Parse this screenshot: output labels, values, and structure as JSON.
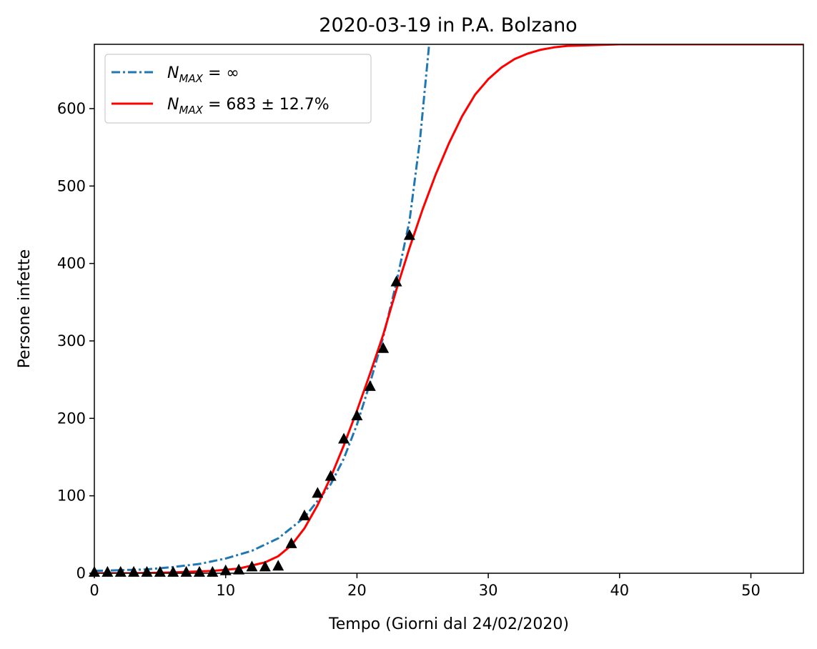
{
  "chart_data": {
    "type": "line",
    "title": "2020-03-19 in P.A. Bolzano",
    "xlabel": "Tempo (Giorni dal 24/02/2020)",
    "ylabel": "Persone infette",
    "xlim": [
      0,
      54
    ],
    "ylim": [
      0,
      683
    ],
    "x_ticks": [
      0,
      10,
      20,
      30,
      40,
      50
    ],
    "y_ticks": [
      0,
      100,
      200,
      300,
      400,
      500,
      600
    ],
    "grid": false,
    "legend_position": "top-left",
    "legend": [
      {
        "symbol": "N",
        "subscript": "MAX",
        "rest": " = ∞",
        "style": "dash-dot",
        "color": "#1f77b4"
      },
      {
        "symbol": "N",
        "subscript": "MAX",
        "rest": " = 683 ± 12.7%",
        "style": "solid",
        "color": "#ff0000"
      }
    ],
    "series": [
      {
        "kind": "exponential-fit",
        "color": "#1f77b4",
        "line_style": "dash-dot",
        "x": [
          0,
          2,
          4,
          6,
          8,
          10,
          12,
          14,
          16,
          18,
          19,
          20,
          21,
          22,
          23,
          24,
          24.8,
          25.5
        ],
        "y": [
          3,
          4,
          5,
          8,
          12,
          19,
          29,
          45,
          72,
          115,
          148,
          192,
          246,
          305,
          375,
          455,
          560,
          683
        ]
      },
      {
        "kind": "logistic-fit",
        "color": "#ff0000",
        "line_style": "solid",
        "x": [
          0,
          3,
          6,
          9,
          11,
          13,
          14,
          15,
          16,
          17,
          18,
          19,
          20,
          21,
          22,
          23,
          24,
          25,
          26,
          27,
          28,
          29,
          30,
          31,
          32,
          33,
          34,
          35,
          36,
          38,
          40,
          43,
          46,
          50,
          54
        ],
        "y": [
          0,
          0,
          1,
          3,
          6,
          14,
          22,
          36,
          58,
          88,
          124,
          165,
          210,
          258,
          308,
          366,
          420,
          470,
          515,
          555,
          590,
          618,
          638,
          653,
          664,
          671,
          676,
          679,
          681,
          682,
          683,
          683,
          683,
          683,
          683
        ]
      },
      {
        "kind": "observed",
        "color": "#000000",
        "marker": "triangle",
        "x": [
          0,
          1,
          2,
          3,
          4,
          5,
          6,
          7,
          8,
          9,
          10,
          11,
          12,
          13,
          14,
          15,
          16,
          17,
          18,
          19,
          20,
          21,
          22,
          23,
          24
        ],
        "y": [
          1,
          1,
          1,
          1,
          1,
          1,
          1,
          1,
          1,
          1,
          3,
          4,
          8,
          8,
          9,
          38,
          74,
          103,
          125,
          173,
          203,
          241,
          290,
          376,
          436
        ]
      }
    ]
  }
}
